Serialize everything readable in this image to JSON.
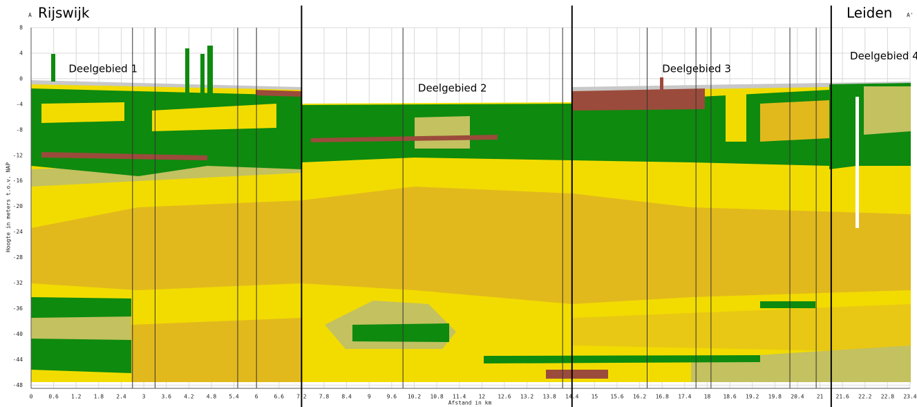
{
  "chart_data": {
    "type": "cross-section",
    "start_marker": "A",
    "start_place": "Rijswijk",
    "end_place": "Leiden",
    "end_marker": "A'",
    "regions": [
      {
        "label": "Deelgebied 1",
        "x": 1.0,
        "y": 1.5
      },
      {
        "label": "Deelgebied 2",
        "x": 10.3,
        "y": -1.5
      },
      {
        "label": "Deelgebied 3",
        "x": 16.8,
        "y": 1.5
      },
      {
        "label": "Deelgebied 4",
        "x": 21.8,
        "y": 3.5
      }
    ],
    "ylabel": "Hoogte in meters t.o.v. NAP",
    "xlabel": "Afstand in km",
    "xlim": [
      0,
      23.4
    ],
    "ylim": [
      -48.5,
      8
    ],
    "xticks": [
      0,
      0.6,
      1.2,
      1.8,
      2.4,
      3,
      3.6,
      4.2,
      4.8,
      5.4,
      6,
      6.6,
      7.2,
      7.8,
      8.4,
      9,
      9.6,
      10.2,
      10.8,
      11.4,
      12,
      12.6,
      13.2,
      13.8,
      14.4,
      15,
      15.6,
      16.2,
      16.8,
      17.4,
      18,
      18.6,
      19.2,
      19.8,
      20.4,
      21,
      21.6,
      22.2,
      22.8,
      23.4
    ],
    "yticks": [
      8,
      4,
      0,
      -4,
      -8,
      -12,
      -16,
      -20,
      -24,
      -28,
      -32,
      -36,
      -40,
      -44,
      -48
    ],
    "boundaries": [
      7.2,
      14.4,
      21.3
    ],
    "section_lines": [
      2.7,
      3.3,
      5.5,
      6.0,
      9.9,
      14.15,
      16.4,
      17.7,
      18.1,
      20.2,
      20.9
    ],
    "grid": true
  }
}
